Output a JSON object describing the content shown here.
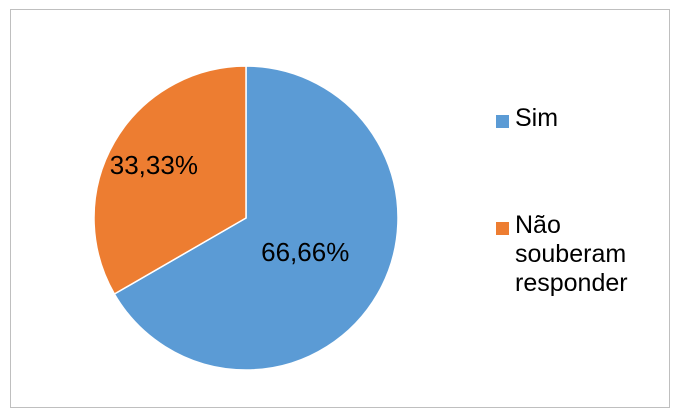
{
  "chart_data": {
    "type": "pie",
    "title": "",
    "slices": [
      {
        "name": "Sim",
        "value": 66.66,
        "label": "66,66%",
        "color": "#5B9BD5"
      },
      {
        "name": "Não souberam responder",
        "value": 33.33,
        "label": "33,33%",
        "color": "#ED7D31"
      }
    ],
    "legend_position": "right",
    "start_angle_deg": 0,
    "direction": "clockwise"
  }
}
